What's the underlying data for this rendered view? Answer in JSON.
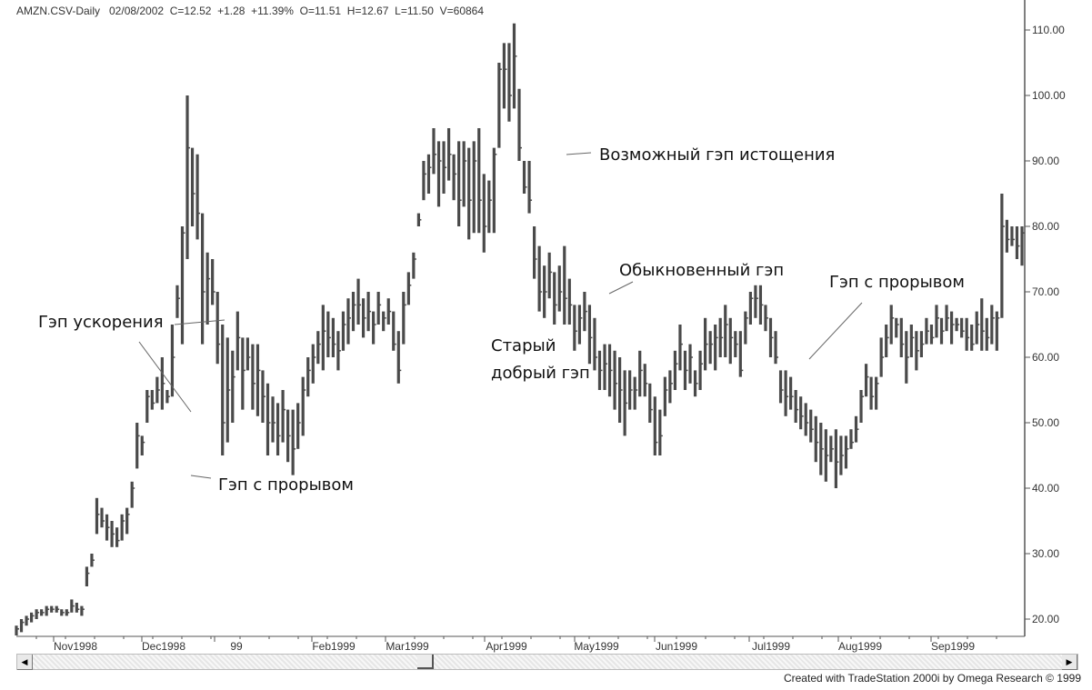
{
  "header": "AMZN.CSV-Daily   02/08/2002  C=12.52  +1.28  +11.39%  O=11.51  H=12.67  L=11.50  V=60864",
  "footer": "Created with TradeStation 2000i by Omega Research © 1999",
  "colors": {
    "bars": "#4a4a4a",
    "axis": "#555555",
    "annotation_line": "#666666"
  },
  "annotations": [
    {
      "text": "Гэп ускорения"
    },
    {
      "text": "Гэп с прорывом"
    },
    {
      "text": "Возможный гэп истощения"
    },
    {
      "text": "Обыкновенный гэп"
    },
    {
      "text": "Старый\nдобрый гэп"
    },
    {
      "text": "Гэп с прорывом"
    }
  ],
  "chart_data": {
    "type": "ohlc-bar",
    "title": "AMZN.CSV-Daily",
    "ylim": [
      18,
      112
    ],
    "y_ticks": [
      "20.00",
      "30.00",
      "40.00",
      "50.00",
      "60.00",
      "70.00",
      "80.00",
      "90.00",
      "100.00",
      "110.00"
    ],
    "x_tick_labels": [
      "Nov1998",
      "Dec1998",
      "99",
      "Feb1999",
      "Mar1999",
      "Apr1999",
      "May1999",
      "Jun1999",
      "Jul1999",
      "Aug1999",
      "Sep1999"
    ],
    "grid": false,
    "bars_hlc": [
      [
        19,
        17.5,
        18.5
      ],
      [
        20,
        18,
        19.5
      ],
      [
        20.5,
        19,
        20
      ],
      [
        21,
        19.5,
        20.5
      ],
      [
        21.5,
        20,
        21
      ],
      [
        21.5,
        20.5,
        21
      ],
      [
        22,
        20.5,
        21.5
      ],
      [
        22,
        21,
        21.5
      ],
      [
        22,
        21,
        21.5
      ],
      [
        21.5,
        20.5,
        21
      ],
      [
        21.5,
        20.5,
        21
      ],
      [
        23,
        21,
        22
      ],
      [
        22.5,
        21,
        21.5
      ],
      [
        22,
        20.5,
        21.5
      ],
      [
        28,
        25,
        27
      ],
      [
        30,
        28,
        29
      ],
      [
        38.5,
        33,
        36
      ],
      [
        37,
        34,
        35
      ],
      [
        36,
        32,
        34
      ],
      [
        35,
        31,
        33
      ],
      [
        34,
        31,
        32
      ],
      [
        36,
        32,
        35
      ],
      [
        37,
        33,
        36
      ],
      [
        41,
        37,
        40
      ],
      [
        50,
        43,
        48
      ],
      [
        48,
        45,
        47
      ],
      [
        55,
        50,
        54
      ],
      [
        55,
        52,
        53
      ],
      [
        57,
        53,
        55
      ],
      [
        60,
        52,
        56
      ],
      [
        55,
        53,
        54
      ],
      [
        65,
        54,
        60
      ],
      [
        71,
        66,
        69
      ],
      [
        80,
        62,
        79
      ],
      [
        100,
        75,
        92
      ],
      [
        92,
        80,
        85
      ],
      [
        91,
        78,
        82
      ],
      [
        82,
        62,
        70
      ],
      [
        76,
        65,
        72
      ],
      [
        75,
        68,
        70
      ],
      [
        70,
        59,
        62
      ],
      [
        65,
        45,
        50
      ],
      [
        63,
        47,
        55
      ],
      [
        61,
        50,
        57
      ],
      [
        67,
        58,
        63
      ],
      [
        63,
        52,
        58
      ],
      [
        63,
        58,
        60
      ],
      [
        62,
        52,
        56
      ],
      [
        62,
        51,
        58
      ],
      [
        58,
        50,
        54
      ],
      [
        56,
        45,
        50
      ],
      [
        54,
        47,
        50
      ],
      [
        53,
        45,
        48
      ],
      [
        55,
        47,
        52
      ],
      [
        52,
        44,
        48
      ],
      [
        52,
        42,
        46
      ],
      [
        53,
        46,
        50
      ],
      [
        57,
        48,
        55
      ],
      [
        60,
        54,
        58
      ],
      [
        62,
        56,
        60
      ],
      [
        64,
        59,
        62
      ],
      [
        68,
        58,
        64
      ],
      [
        67,
        60,
        63
      ],
      [
        66,
        60,
        62
      ],
      [
        64,
        58,
        61
      ],
      [
        67,
        61,
        65
      ],
      [
        69,
        62,
        66
      ],
      [
        70,
        64,
        68
      ],
      [
        72,
        65,
        68
      ],
      [
        69,
        63,
        66
      ],
      [
        70,
        64,
        67
      ],
      [
        67,
        62,
        65
      ],
      [
        70,
        65,
        68
      ],
      [
        67,
        64,
        66
      ],
      [
        69,
        65,
        67
      ],
      [
        67,
        61,
        62
      ],
      [
        64,
        56,
        58
      ],
      [
        70,
        62,
        68
      ],
      [
        73,
        68,
        71
      ],
      [
        76,
        72,
        75
      ],
      [
        82,
        80,
        81
      ],
      [
        90,
        84,
        88
      ],
      [
        91,
        85,
        89
      ],
      [
        95,
        88,
        91
      ],
      [
        93,
        83,
        90
      ],
      [
        93,
        85,
        89
      ],
      [
        95,
        87,
        91
      ],
      [
        91,
        84,
        88
      ],
      [
        93,
        80,
        84
      ],
      [
        93,
        83,
        90
      ],
      [
        92,
        78,
        84
      ],
      [
        93,
        79,
        90
      ],
      [
        95,
        79,
        84
      ],
      [
        88,
        76,
        80
      ],
      [
        87,
        79,
        84
      ],
      [
        92,
        79,
        91
      ],
      [
        105,
        92,
        104
      ],
      [
        108,
        98,
        104
      ],
      [
        108,
        96,
        100
      ],
      [
        111,
        98,
        106
      ],
      [
        101,
        90,
        92
      ],
      [
        90,
        85,
        86
      ],
      [
        90,
        82,
        84
      ],
      [
        80,
        72,
        75
      ],
      [
        77,
        67,
        70
      ],
      [
        74,
        66,
        70
      ],
      [
        76,
        69,
        73
      ],
      [
        73,
        65,
        68
      ],
      [
        74,
        67,
        70
      ],
      [
        77,
        65,
        69
      ],
      [
        72,
        65,
        68
      ],
      [
        68,
        61,
        64
      ],
      [
        68,
        62,
        66
      ],
      [
        70,
        64,
        67
      ],
      [
        68,
        59,
        63
      ],
      [
        66,
        58,
        60
      ],
      [
        61,
        55,
        58
      ],
      [
        62,
        55,
        59
      ],
      [
        62,
        54,
        58
      ],
      [
        61,
        52,
        56
      ],
      [
        60,
        50,
        55
      ],
      [
        58,
        48,
        53
      ],
      [
        58,
        52,
        55
      ],
      [
        57,
        52,
        55
      ],
      [
        61,
        54,
        58
      ],
      [
        59,
        54,
        56
      ],
      [
        56,
        50,
        52
      ],
      [
        54,
        45,
        47
      ],
      [
        52,
        45,
        48
      ],
      [
        57,
        51,
        55
      ],
      [
        58,
        53,
        56
      ],
      [
        61,
        55,
        59
      ],
      [
        65,
        58,
        62
      ],
      [
        61,
        55,
        58
      ],
      [
        62,
        56,
        60
      ],
      [
        58,
        54,
        56
      ],
      [
        61,
        55,
        59
      ],
      [
        66,
        58,
        62
      ],
      [
        64,
        59,
        62
      ],
      [
        65,
        58,
        63
      ],
      [
        66,
        60,
        63
      ],
      [
        68,
        60,
        65
      ],
      [
        66,
        59,
        63
      ],
      [
        64,
        60,
        62
      ],
      [
        64,
        57,
        58
      ],
      [
        67,
        62,
        66
      ],
      [
        70,
        65,
        69
      ],
      [
        71,
        66,
        69
      ],
      [
        71,
        65,
        68
      ],
      [
        68,
        64,
        66
      ],
      [
        66,
        60,
        63
      ],
      [
        64,
        59,
        60
      ],
      [
        58,
        53,
        55
      ],
      [
        58,
        51,
        54
      ],
      [
        57,
        52,
        54
      ],
      [
        55,
        50,
        52
      ],
      [
        54,
        49,
        51
      ],
      [
        53,
        48,
        50
      ],
      [
        52,
        47,
        49
      ],
      [
        51,
        44,
        47
      ],
      [
        50,
        42,
        46
      ],
      [
        49,
        41,
        45
      ],
      [
        48,
        44,
        46
      ],
      [
        49,
        40,
        44
      ],
      [
        48,
        42,
        45
      ],
      [
        48,
        43,
        46
      ],
      [
        49,
        46,
        47
      ],
      [
        51,
        47,
        49
      ],
      [
        55,
        50,
        54
      ],
      [
        59,
        54,
        57
      ],
      [
        57,
        52,
        54
      ],
      [
        57,
        52,
        56
      ],
      [
        63,
        57,
        60
      ],
      [
        65,
        60,
        63
      ],
      [
        68,
        62,
        66
      ],
      [
        66,
        63,
        65
      ],
      [
        66,
        60,
        62
      ],
      [
        64,
        56,
        60
      ],
      [
        65,
        60,
        63
      ],
      [
        64,
        58,
        61
      ],
      [
        64,
        60,
        62
      ],
      [
        66,
        62,
        64
      ],
      [
        65,
        62,
        63
      ],
      [
        68,
        63,
        66
      ],
      [
        66,
        62,
        64
      ],
      [
        68,
        64,
        66
      ],
      [
        67,
        62,
        65
      ],
      [
        66,
        64,
        65
      ],
      [
        66,
        63,
        64
      ],
      [
        66,
        61,
        63
      ],
      [
        65,
        61,
        62
      ],
      [
        67,
        62,
        65
      ],
      [
        69,
        61,
        64
      ],
      [
        66,
        61,
        63
      ],
      [
        68,
        62,
        66
      ],
      [
        67,
        61,
        66
      ],
      [
        85,
        66,
        80
      ],
      [
        81,
        76,
        78
      ],
      [
        80,
        77,
        78
      ],
      [
        80,
        75,
        77
      ],
      [
        80,
        74,
        79
      ]
    ]
  }
}
